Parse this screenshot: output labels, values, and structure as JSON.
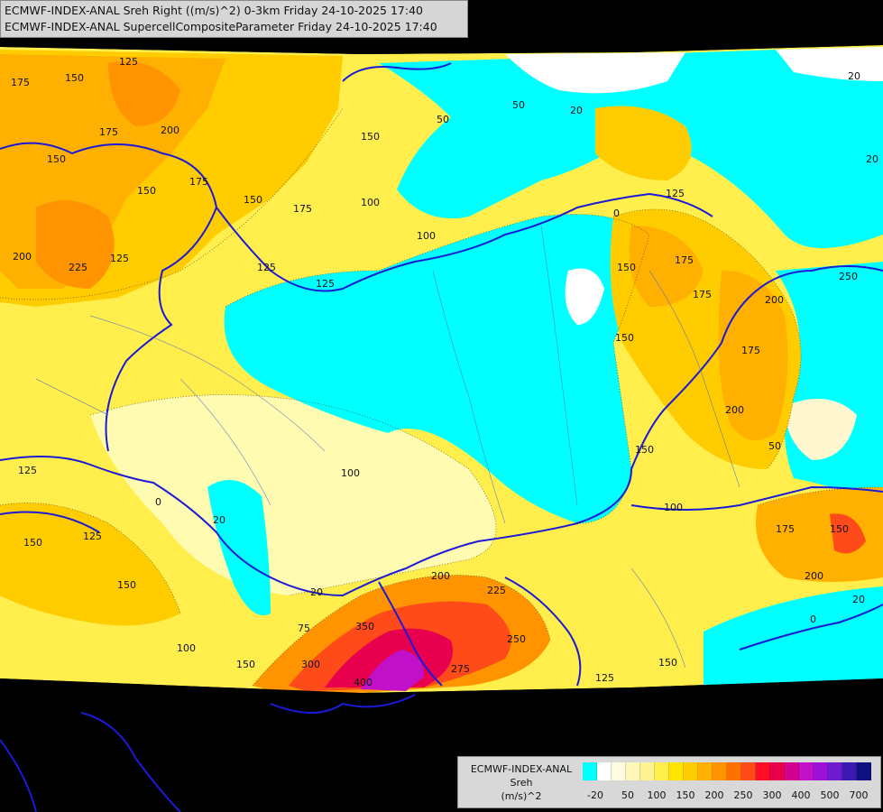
{
  "title": {
    "line1": "ECMWF-INDEX-ANAL Sreh Right ((m/s)^2) 0-3km Friday 24-10-2025 17:40",
    "line2": "ECMWF-INDEX-ANAL SupercellCompositeParameter Friday 24-10-2025 17:40"
  },
  "legend": {
    "line1": "ECMWF-INDEX-ANAL",
    "line2": "Sreh",
    "line3": "(m/s)^2",
    "colors": [
      "#00ffff",
      "#ffffff",
      "#fffbe0",
      "#fff7b8",
      "#fff290",
      "#ffee4c",
      "#ffe400",
      "#ffcc00",
      "#ffb000",
      "#ff9400",
      "#ff7000",
      "#ff4a1a",
      "#ff0c28",
      "#e8004e",
      "#d40090",
      "#c010c8",
      "#9a12d8",
      "#6e1ad0",
      "#3a1ab0",
      "#101080"
    ],
    "ticks": [
      "-20",
      "50",
      "100",
      "150",
      "200",
      "250",
      "300",
      "400",
      "500",
      "700"
    ]
  },
  "contour_labels": [
    "175",
    "150",
    "125",
    "200",
    "175",
    "150",
    "100",
    "150",
    "175",
    "125",
    "100",
    "125",
    "150",
    "175",
    "150",
    "200",
    "225",
    "125",
    "50",
    "20",
    "20",
    "20",
    "0",
    "125",
    "150",
    "175",
    "150",
    "175",
    "200",
    "175",
    "200",
    "50",
    "150",
    "125",
    "150",
    "100",
    "150",
    "175",
    "200",
    "20",
    "0",
    "250",
    "275",
    "125",
    "225",
    "200",
    "350",
    "400",
    "300",
    "150",
    "100",
    "75",
    "20",
    "0",
    "50",
    "125",
    "150",
    "100",
    "20",
    "150",
    "250"
  ]
}
